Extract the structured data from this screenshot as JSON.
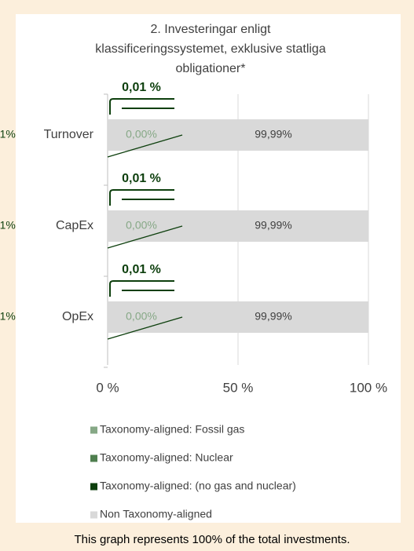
{
  "chart_data": {
    "type": "stacked-barh",
    "title": [
      "2. Investeringar enligt",
      "klassificeringssystemet, exklusive statliga",
      "obligationer*"
    ],
    "categories": [
      "Turnover",
      "CapEx",
      "OpEx"
    ],
    "series": [
      {
        "name": "Taxonomy-aligned: Fossil gas",
        "color": "#86a886",
        "values": [
          0,
          0,
          0
        ],
        "value_labels": [
          "0,00%",
          "0,00%",
          "0,00%"
        ]
      },
      {
        "name": "Taxonomy-aligned: Nuclear",
        "color": "#4f7f4f",
        "values": [
          0,
          0,
          0
        ]
      },
      {
        "name": "Taxonomy-aligned: (no gas and nuclear)",
        "color": "#0d3f0d",
        "values": [
          0.01,
          0.01,
          0.01
        ],
        "value_labels": [
          "0,01%",
          "0,01%",
          "0,01%"
        ]
      },
      {
        "name": "Non Taxonomy-aligned",
        "color": "#d9d9d9",
        "values": [
          99.99,
          99.99,
          99.99
        ],
        "value_labels": [
          "99,99%",
          "99,99%",
          "99,99%"
        ]
      }
    ],
    "annotations": [
      "0,01 %",
      "0,01 %",
      "0,01 %"
    ],
    "xlim": [
      0,
      100
    ],
    "xticks": [
      {
        "value": 0,
        "label": "0 %"
      },
      {
        "value": 50,
        "label": "50 %"
      },
      {
        "value": 100,
        "label": "100 %"
      }
    ],
    "grid": true,
    "note": "This graph represents 100% of the total investments."
  }
}
